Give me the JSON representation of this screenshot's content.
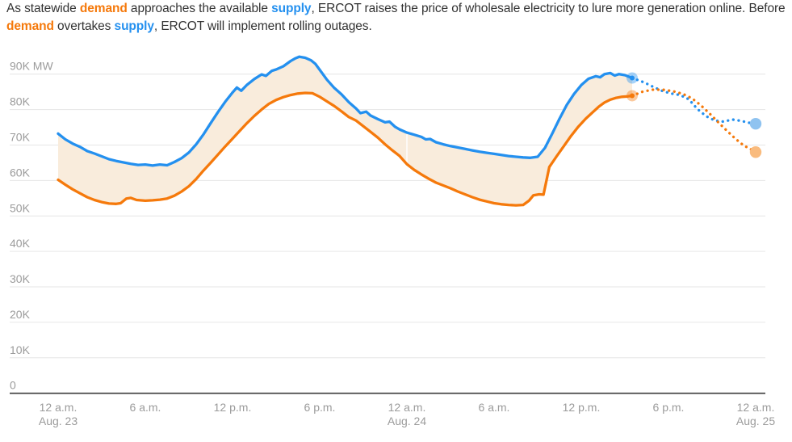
{
  "header": {
    "segments": [
      {
        "text": "As statewide ",
        "style": "normal"
      },
      {
        "text": "demand",
        "style": "demand"
      },
      {
        "text": " approaches the available ",
        "style": "normal"
      },
      {
        "text": "supply",
        "style": "supply"
      },
      {
        "text": ", ERCOT raises the price of wholesale electricity to lure more generation online. Before ",
        "style": "normal"
      },
      {
        "text": "demand",
        "style": "demand"
      },
      {
        "text": " overtakes ",
        "style": "normal"
      },
      {
        "text": "supply",
        "style": "supply"
      },
      {
        "text": ", ERCOT will implement rolling outages.",
        "style": "normal"
      }
    ]
  },
  "colors": {
    "demand": "#f5790b",
    "supply": "#2490ef",
    "band_fill": "#f9ecdc",
    "supply_light": "#8fc3f0",
    "demand_light": "#f9bb7e",
    "gridline": "#e6e6e6",
    "axis_line": "#3d3d3d",
    "axis_label": "#9b9b9b",
    "body_text": "#333333",
    "day_divider": "rgba(255,255,255,0.7)"
  },
  "chart_data": {
    "type": "area",
    "values_unit": "thousand MW",
    "x_unit": "hours since 12 a.m. Aug. 23",
    "x_range_hours": [
      0,
      48
    ],
    "y_axis": {
      "min": 0,
      "max": 90,
      "tick_step": 10,
      "ticks": [
        {
          "value": 90,
          "label": "90K MW"
        },
        {
          "value": 80,
          "label": "80K"
        },
        {
          "value": 70,
          "label": "70K"
        },
        {
          "value": 60,
          "label": "60K"
        },
        {
          "value": 50,
          "label": "50K"
        },
        {
          "value": 40,
          "label": "40K"
        },
        {
          "value": 30,
          "label": "30K"
        },
        {
          "value": 20,
          "label": "20K"
        },
        {
          "value": 10,
          "label": "10K"
        },
        {
          "value": 0,
          "label": "0"
        }
      ]
    },
    "x_axis": {
      "ticks": [
        {
          "hour": 0,
          "label": "12 a.m.",
          "sublabel": "Aug. 23"
        },
        {
          "hour": 6,
          "label": "6 a.m."
        },
        {
          "hour": 12,
          "label": "12 p.m."
        },
        {
          "hour": 18,
          "label": "6 p.m."
        },
        {
          "hour": 24,
          "label": "12 a.m.",
          "sublabel": "Aug. 24"
        },
        {
          "hour": 30,
          "label": "6 a.m."
        },
        {
          "hour": 36,
          "label": "12 p.m."
        },
        {
          "hour": 42,
          "label": "6 p.m."
        },
        {
          "hour": 48,
          "label": "12 a.m.",
          "sublabel": "Aug. 25"
        }
      ]
    },
    "band": {
      "between": [
        "supply",
        "demand"
      ],
      "color_key": "band_fill"
    },
    "day_divider_hour": 24,
    "series": [
      {
        "id": "supply",
        "name": "supply",
        "style": "solid",
        "color_key": "supply",
        "points": [
          [
            0,
            73.2
          ],
          [
            0.5,
            71.6
          ],
          [
            1,
            70.4
          ],
          [
            1.5,
            69.5
          ],
          [
            2,
            68.3
          ],
          [
            2.5,
            67.6
          ],
          [
            3,
            66.8
          ],
          [
            3.5,
            66.0
          ],
          [
            4,
            65.5
          ],
          [
            4.5,
            65.1
          ],
          [
            5,
            64.7
          ],
          [
            5.5,
            64.4
          ],
          [
            6,
            64.5
          ],
          [
            6.5,
            64.2
          ],
          [
            7,
            64.5
          ],
          [
            7.5,
            64.3
          ],
          [
            8,
            65.2
          ],
          [
            8.5,
            66.3
          ],
          [
            9,
            67.9
          ],
          [
            9.5,
            70.2
          ],
          [
            10,
            73.0
          ],
          [
            10.5,
            76.2
          ],
          [
            11,
            79.3
          ],
          [
            11.5,
            82.2
          ],
          [
            12,
            84.8
          ],
          [
            12.3,
            86.2
          ],
          [
            12.6,
            85.3
          ],
          [
            13,
            87.0
          ],
          [
            13.5,
            88.6
          ],
          [
            14,
            89.9
          ],
          [
            14.3,
            89.5
          ],
          [
            14.7,
            90.9
          ],
          [
            15,
            91.3
          ],
          [
            15.5,
            92.2
          ],
          [
            16,
            93.7
          ],
          [
            16.3,
            94.4
          ],
          [
            16.6,
            94.9
          ],
          [
            17,
            94.6
          ],
          [
            17.4,
            93.9
          ],
          [
            17.7,
            92.9
          ],
          [
            18,
            91.2
          ],
          [
            18.5,
            88.4
          ],
          [
            19,
            86.1
          ],
          [
            19.5,
            84.3
          ],
          [
            20,
            82.1
          ],
          [
            20.5,
            80.3
          ],
          [
            20.8,
            79.0
          ],
          [
            21.2,
            79.4
          ],
          [
            21.5,
            78.3
          ],
          [
            22,
            77.3
          ],
          [
            22.5,
            76.4
          ],
          [
            22.8,
            76.6
          ],
          [
            23.2,
            75.1
          ],
          [
            23.5,
            74.4
          ],
          [
            24,
            73.5
          ],
          [
            24.5,
            72.9
          ],
          [
            25,
            72.3
          ],
          [
            25.3,
            71.6
          ],
          [
            25.6,
            71.7
          ],
          [
            26,
            70.8
          ],
          [
            26.5,
            70.2
          ],
          [
            27,
            69.7
          ],
          [
            27.5,
            69.3
          ],
          [
            28,
            68.9
          ],
          [
            28.5,
            68.5
          ],
          [
            29,
            68.1
          ],
          [
            29.5,
            67.8
          ],
          [
            30,
            67.5
          ],
          [
            30.5,
            67.2
          ],
          [
            31,
            66.9
          ],
          [
            31.5,
            66.7
          ],
          [
            32,
            66.5
          ],
          [
            32.5,
            66.4
          ],
          [
            33,
            66.7
          ],
          [
            33.5,
            69.2
          ],
          [
            34,
            73.2
          ],
          [
            34.5,
            77.4
          ],
          [
            35,
            81.3
          ],
          [
            35.5,
            84.4
          ],
          [
            36,
            86.9
          ],
          [
            36.5,
            88.7
          ],
          [
            37,
            89.4
          ],
          [
            37.3,
            89.1
          ],
          [
            37.6,
            90.0
          ],
          [
            38,
            90.3
          ],
          [
            38.3,
            89.6
          ],
          [
            38.6,
            90.0
          ],
          [
            39,
            89.7
          ],
          [
            39.5,
            88.9
          ]
        ]
      },
      {
        "id": "demand",
        "name": "demand",
        "style": "solid",
        "color_key": "demand",
        "points": [
          [
            0,
            60.2
          ],
          [
            0.5,
            58.8
          ],
          [
            1,
            57.5
          ],
          [
            1.5,
            56.4
          ],
          [
            2,
            55.3
          ],
          [
            2.5,
            54.5
          ],
          [
            3,
            53.9
          ],
          [
            3.5,
            53.5
          ],
          [
            4,
            53.4
          ],
          [
            4.3,
            53.6
          ],
          [
            4.7,
            54.9
          ],
          [
            5,
            55.1
          ],
          [
            5.4,
            54.5
          ],
          [
            6,
            54.3
          ],
          [
            6.5,
            54.4
          ],
          [
            7,
            54.6
          ],
          [
            7.5,
            54.9
          ],
          [
            8,
            55.7
          ],
          [
            8.5,
            56.9
          ],
          [
            9,
            58.4
          ],
          [
            9.5,
            60.4
          ],
          [
            10,
            62.8
          ],
          [
            10.5,
            65.0
          ],
          [
            11,
            67.3
          ],
          [
            11.5,
            69.6
          ],
          [
            12,
            71.8
          ],
          [
            12.5,
            74.0
          ],
          [
            13,
            76.2
          ],
          [
            13.5,
            78.2
          ],
          [
            14,
            80.0
          ],
          [
            14.5,
            81.6
          ],
          [
            15,
            82.7
          ],
          [
            15.5,
            83.5
          ],
          [
            16,
            84.1
          ],
          [
            16.5,
            84.5
          ],
          [
            17,
            84.7
          ],
          [
            17.5,
            84.6
          ],
          [
            18,
            83.6
          ],
          [
            18.5,
            82.3
          ],
          [
            19,
            81.0
          ],
          [
            19.5,
            79.5
          ],
          [
            20,
            77.9
          ],
          [
            20.5,
            76.9
          ],
          [
            21,
            75.3
          ],
          [
            21.5,
            73.7
          ],
          [
            22,
            72.1
          ],
          [
            22.5,
            70.2
          ],
          [
            23,
            68.5
          ],
          [
            23.5,
            66.9
          ],
          [
            24,
            64.6
          ],
          [
            24.5,
            63.0
          ],
          [
            25,
            61.7
          ],
          [
            25.5,
            60.5
          ],
          [
            26,
            59.4
          ],
          [
            26.5,
            58.6
          ],
          [
            27,
            57.8
          ],
          [
            27.5,
            56.9
          ],
          [
            28,
            56.1
          ],
          [
            28.5,
            55.3
          ],
          [
            29,
            54.6
          ],
          [
            29.5,
            54.1
          ],
          [
            30,
            53.6
          ],
          [
            30.5,
            53.3
          ],
          [
            31,
            53.1
          ],
          [
            31.5,
            53.0
          ],
          [
            32,
            53.1
          ],
          [
            32.4,
            54.3
          ],
          [
            32.7,
            55.8
          ],
          [
            33.1,
            56.1
          ],
          [
            33.4,
            56.0
          ],
          [
            33.8,
            63.8
          ],
          [
            34.3,
            66.8
          ],
          [
            34.8,
            69.7
          ],
          [
            35.3,
            72.6
          ],
          [
            35.8,
            75.2
          ],
          [
            36.3,
            77.4
          ],
          [
            36.8,
            79.3
          ],
          [
            37.2,
            80.8
          ],
          [
            37.6,
            82.0
          ],
          [
            38,
            82.8
          ],
          [
            38.4,
            83.3
          ],
          [
            38.8,
            83.6
          ],
          [
            39.2,
            83.7
          ],
          [
            39.5,
            83.9
          ]
        ]
      },
      {
        "id": "supply_forecast",
        "name": "supply forecast",
        "style": "dotted",
        "color_key": "supply",
        "points": [
          [
            39.5,
            88.9
          ],
          [
            40.3,
            87.7
          ],
          [
            41,
            86.3
          ],
          [
            41.6,
            85.2
          ],
          [
            42.2,
            84.5
          ],
          [
            42.8,
            84.1
          ],
          [
            43.4,
            82.9
          ],
          [
            44,
            80.1
          ],
          [
            44.6,
            78.1
          ],
          [
            45.2,
            76.9
          ],
          [
            45.8,
            76.6
          ],
          [
            46.4,
            77.2
          ],
          [
            47,
            76.8
          ],
          [
            47.5,
            76.3
          ],
          [
            48,
            76.0
          ]
        ]
      },
      {
        "id": "demand_forecast",
        "name": "demand forecast",
        "style": "dotted",
        "color_key": "demand",
        "points": [
          [
            39.5,
            83.9
          ],
          [
            40.2,
            85.0
          ],
          [
            40.9,
            85.6
          ],
          [
            41.6,
            85.6
          ],
          [
            42.3,
            85.2
          ],
          [
            43,
            84.4
          ],
          [
            43.6,
            83.2
          ],
          [
            44.2,
            81.3
          ],
          [
            44.8,
            79.0
          ],
          [
            45.4,
            76.5
          ],
          [
            46,
            74.1
          ],
          [
            46.6,
            71.8
          ],
          [
            47.2,
            69.8
          ],
          [
            47.6,
            69.0
          ],
          [
            48,
            68.0
          ]
        ]
      }
    ],
    "markers": [
      {
        "series": "supply",
        "hour": 39.5,
        "value": 88.9,
        "kind": "current-dot",
        "color_key": "supply"
      },
      {
        "series": "demand",
        "hour": 39.5,
        "value": 83.9,
        "kind": "current-dot",
        "color_key": "demand"
      },
      {
        "series": "supply_forecast",
        "hour": 48,
        "value": 76.0,
        "kind": "forecast-end-dot",
        "color_key": "supply_light"
      },
      {
        "series": "demand_forecast",
        "hour": 48,
        "value": 68.0,
        "kind": "forecast-end-dot",
        "color_key": "demand_light"
      }
    ]
  }
}
